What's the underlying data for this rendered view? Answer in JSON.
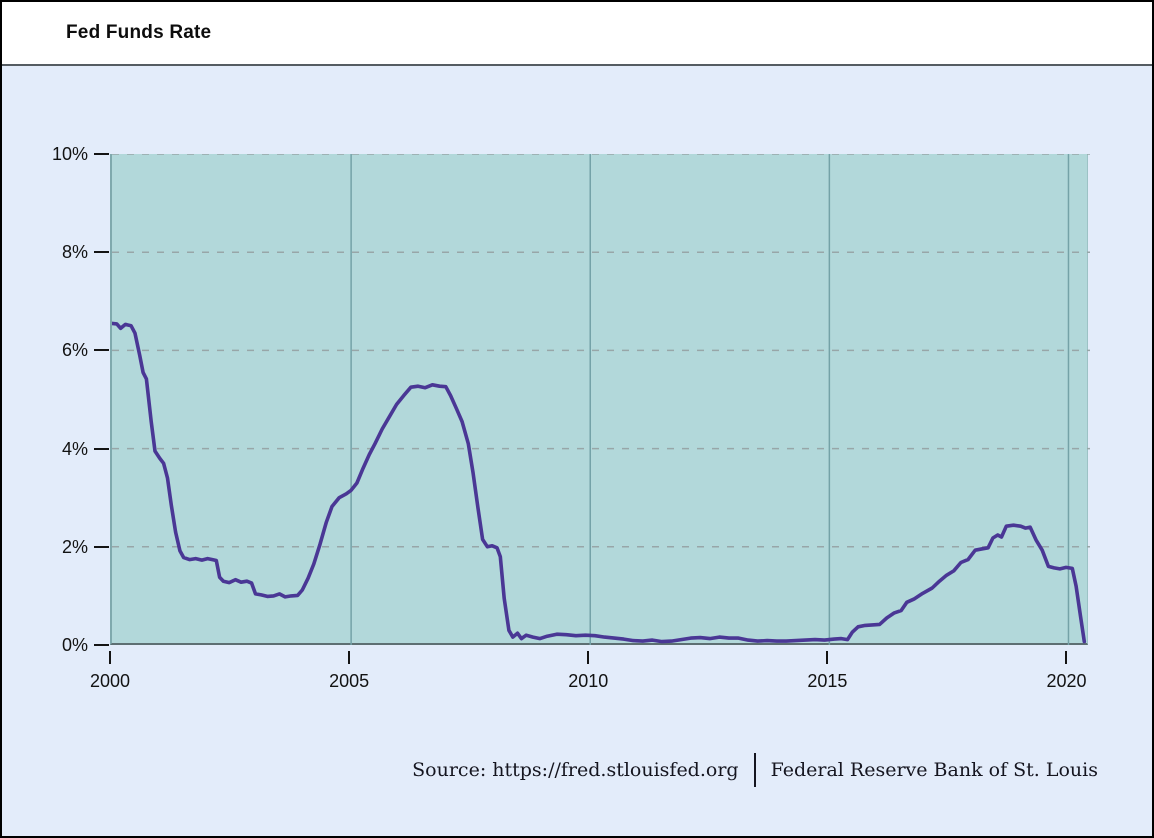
{
  "window": {
    "title": "Fed Funds Rate"
  },
  "footer": {
    "source_label": "Source: https://fred.stlouisfed.org",
    "attribution": "Federal Reserve Bank of St. Louis"
  },
  "colors": {
    "page_bg": "#e3ecfa",
    "plot_bg": "#b2d8da",
    "grid_horizontal": "#98a6a8",
    "grid_vertical": "#74a2a7",
    "line": "#4a3795",
    "axis": "#5d6f72",
    "tick": "#141414"
  },
  "chart_data": {
    "type": "line",
    "title": "Fed Funds Rate",
    "xlabel": "",
    "ylabel": "",
    "legend": "none",
    "x_axis": {
      "range": [
        2000,
        2020.45
      ],
      "ticks": [
        {
          "value": 2000,
          "label": "2000"
        },
        {
          "value": 2005,
          "label": "2005"
        },
        {
          "value": 2010,
          "label": "2010"
        },
        {
          "value": 2015,
          "label": "2015"
        },
        {
          "value": 2020,
          "label": "2020"
        }
      ]
    },
    "y_axis": {
      "range": [
        0,
        10
      ],
      "unit": "percent",
      "ticks": [
        {
          "value": 0,
          "label": "0%"
        },
        {
          "value": 2,
          "label": "2%"
        },
        {
          "value": 4,
          "label": "4%"
        },
        {
          "value": 6,
          "label": "6%"
        },
        {
          "value": 8,
          "label": "8%"
        },
        {
          "value": 10,
          "label": "10%"
        }
      ]
    },
    "grid": {
      "horizontal_style": "dashed",
      "vertical_style": "solid"
    },
    "series": [
      {
        "name": "Fed Funds Rate",
        "color": "#4a3795",
        "points": [
          [
            2000.0,
            6.55
          ],
          [
            2000.1,
            6.54
          ],
          [
            2000.18,
            6.45
          ],
          [
            2000.28,
            6.53
          ],
          [
            2000.4,
            6.5
          ],
          [
            2000.48,
            6.35
          ],
          [
            2000.58,
            5.9
          ],
          [
            2000.65,
            5.55
          ],
          [
            2000.72,
            5.42
          ],
          [
            2000.82,
            4.55
          ],
          [
            2000.9,
            3.95
          ],
          [
            2001.0,
            3.8
          ],
          [
            2001.08,
            3.7
          ],
          [
            2001.16,
            3.4
          ],
          [
            2001.24,
            2.85
          ],
          [
            2001.33,
            2.3
          ],
          [
            2001.42,
            1.92
          ],
          [
            2001.5,
            1.78
          ],
          [
            2001.62,
            1.74
          ],
          [
            2001.75,
            1.76
          ],
          [
            2001.88,
            1.73
          ],
          [
            2002.0,
            1.76
          ],
          [
            2002.1,
            1.74
          ],
          [
            2002.18,
            1.72
          ],
          [
            2002.25,
            1.38
          ],
          [
            2002.33,
            1.3
          ],
          [
            2002.45,
            1.27
          ],
          [
            2002.58,
            1.33
          ],
          [
            2002.7,
            1.28
          ],
          [
            2002.82,
            1.3
          ],
          [
            2002.92,
            1.26
          ],
          [
            2003.0,
            1.04
          ],
          [
            2003.12,
            1.02
          ],
          [
            2003.25,
            0.99
          ],
          [
            2003.38,
            1.0
          ],
          [
            2003.5,
            1.04
          ],
          [
            2003.62,
            0.98
          ],
          [
            2003.75,
            1.0
          ],
          [
            2003.88,
            1.01
          ],
          [
            2003.98,
            1.12
          ],
          [
            2004.1,
            1.36
          ],
          [
            2004.22,
            1.65
          ],
          [
            2004.35,
            2.05
          ],
          [
            2004.48,
            2.5
          ],
          [
            2004.6,
            2.82
          ],
          [
            2004.75,
            3.0
          ],
          [
            2004.9,
            3.08
          ],
          [
            2005.0,
            3.15
          ],
          [
            2005.12,
            3.3
          ],
          [
            2005.25,
            3.6
          ],
          [
            2005.38,
            3.88
          ],
          [
            2005.5,
            4.1
          ],
          [
            2005.65,
            4.4
          ],
          [
            2005.8,
            4.65
          ],
          [
            2005.95,
            4.9
          ],
          [
            2006.1,
            5.08
          ],
          [
            2006.25,
            5.25
          ],
          [
            2006.4,
            5.27
          ],
          [
            2006.55,
            5.24
          ],
          [
            2006.7,
            5.3
          ],
          [
            2006.85,
            5.27
          ],
          [
            2006.98,
            5.26
          ],
          [
            2007.08,
            5.08
          ],
          [
            2007.2,
            4.82
          ],
          [
            2007.32,
            4.55
          ],
          [
            2007.45,
            4.1
          ],
          [
            2007.55,
            3.5
          ],
          [
            2007.65,
            2.8
          ],
          [
            2007.75,
            2.15
          ],
          [
            2007.85,
            2.0
          ],
          [
            2007.95,
            2.02
          ],
          [
            2008.05,
            1.98
          ],
          [
            2008.12,
            1.8
          ],
          [
            2008.2,
            0.95
          ],
          [
            2008.3,
            0.3
          ],
          [
            2008.38,
            0.16
          ],
          [
            2008.48,
            0.24
          ],
          [
            2008.56,
            0.13
          ],
          [
            2008.66,
            0.2
          ],
          [
            2008.8,
            0.16
          ],
          [
            2008.95,
            0.13
          ],
          [
            2009.1,
            0.18
          ],
          [
            2009.3,
            0.22
          ],
          [
            2009.5,
            0.21
          ],
          [
            2009.7,
            0.19
          ],
          [
            2009.9,
            0.2
          ],
          [
            2010.1,
            0.19
          ],
          [
            2010.3,
            0.16
          ],
          [
            2010.5,
            0.14
          ],
          [
            2010.7,
            0.12
          ],
          [
            2010.9,
            0.09
          ],
          [
            2011.1,
            0.08
          ],
          [
            2011.3,
            0.1
          ],
          [
            2011.5,
            0.07
          ],
          [
            2011.7,
            0.08
          ],
          [
            2011.9,
            0.11
          ],
          [
            2012.1,
            0.14
          ],
          [
            2012.3,
            0.15
          ],
          [
            2012.5,
            0.13
          ],
          [
            2012.7,
            0.16
          ],
          [
            2012.9,
            0.14
          ],
          [
            2013.1,
            0.14
          ],
          [
            2013.3,
            0.1
          ],
          [
            2013.5,
            0.08
          ],
          [
            2013.7,
            0.09
          ],
          [
            2013.9,
            0.08
          ],
          [
            2014.1,
            0.08
          ],
          [
            2014.3,
            0.09
          ],
          [
            2014.5,
            0.1
          ],
          [
            2014.7,
            0.11
          ],
          [
            2014.9,
            0.1
          ],
          [
            2015.1,
            0.12
          ],
          [
            2015.25,
            0.13
          ],
          [
            2015.38,
            0.11
          ],
          [
            2015.48,
            0.26
          ],
          [
            2015.6,
            0.37
          ],
          [
            2015.75,
            0.4
          ],
          [
            2015.9,
            0.41
          ],
          [
            2016.05,
            0.42
          ],
          [
            2016.2,
            0.55
          ],
          [
            2016.35,
            0.65
          ],
          [
            2016.5,
            0.7
          ],
          [
            2016.62,
            0.87
          ],
          [
            2016.78,
            0.94
          ],
          [
            2016.95,
            1.05
          ],
          [
            2017.15,
            1.16
          ],
          [
            2017.3,
            1.3
          ],
          [
            2017.45,
            1.42
          ],
          [
            2017.6,
            1.51
          ],
          [
            2017.75,
            1.68
          ],
          [
            2017.9,
            1.74
          ],
          [
            2018.05,
            1.93
          ],
          [
            2018.2,
            1.96
          ],
          [
            2018.32,
            1.98
          ],
          [
            2018.42,
            2.18
          ],
          [
            2018.52,
            2.24
          ],
          [
            2018.6,
            2.2
          ],
          [
            2018.7,
            2.42
          ],
          [
            2018.85,
            2.44
          ],
          [
            2019.0,
            2.42
          ],
          [
            2019.1,
            2.38
          ],
          [
            2019.2,
            2.4
          ],
          [
            2019.32,
            2.14
          ],
          [
            2019.45,
            1.93
          ],
          [
            2019.58,
            1.6
          ],
          [
            2019.7,
            1.57
          ],
          [
            2019.82,
            1.55
          ],
          [
            2019.95,
            1.58
          ],
          [
            2020.08,
            1.56
          ],
          [
            2020.16,
            1.2
          ],
          [
            2020.25,
            0.6
          ],
          [
            2020.33,
            0.07
          ]
        ]
      }
    ]
  }
}
